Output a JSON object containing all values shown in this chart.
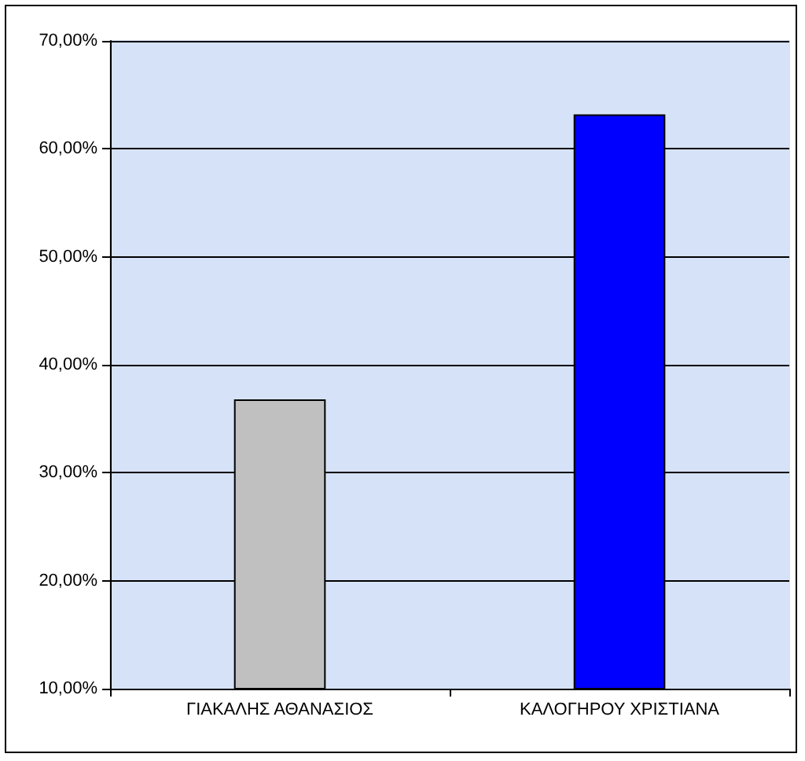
{
  "chart_data": {
    "type": "bar",
    "categories": [
      "ΓΙΑΚΑΛΗΣ ΑΘΑΝΑΣΙΟΣ",
      "ΚΑΛΟΓΗΡΟΥ ΧΡΙΣΤΙΑΝΑ"
    ],
    "values": [
      36.8,
      63.2
    ],
    "colors": [
      "#c0c0c0",
      "#0000ff"
    ],
    "ylim": [
      10,
      70
    ],
    "yticks": [
      {
        "value": 10,
        "label": "10,00%"
      },
      {
        "value": 20,
        "label": "20,00%"
      },
      {
        "value": 30,
        "label": "30,00%"
      },
      {
        "value": 40,
        "label": "40,00%"
      },
      {
        "value": 50,
        "label": "50,00%"
      },
      {
        "value": 60,
        "label": "60,00%"
      },
      {
        "value": 70,
        "label": "70,00%"
      }
    ],
    "grid": "y"
  }
}
